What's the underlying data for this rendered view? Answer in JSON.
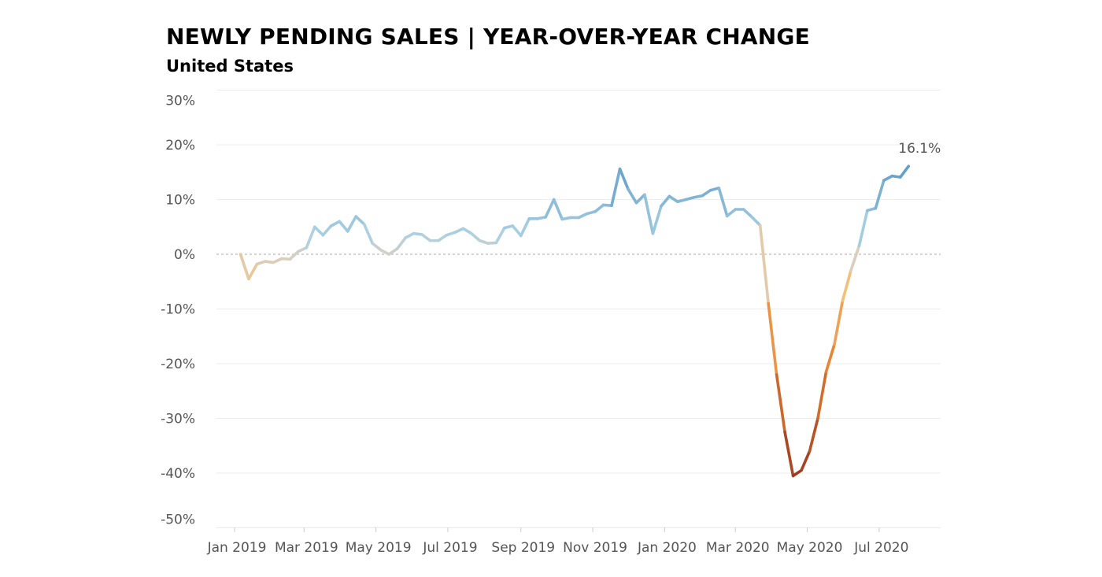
{
  "title": "NEWLY PENDING SALES | YEAR-OVER-YEAR CHANGE",
  "subtitle": "United States",
  "chart_data": {
    "type": "line",
    "title": "NEWLY PENDING SALES | YEAR-OVER-YEAR CHANGE",
    "subtitle": "United States",
    "xlabel": "",
    "ylabel": "",
    "ylim": [
      -50,
      30
    ],
    "y_ticks": [
      30,
      20,
      10,
      0,
      -10,
      -20,
      -30,
      -40,
      -50
    ],
    "y_tick_labels": [
      "30%",
      "20%",
      "10%",
      "0%",
      "-10%",
      "-20%",
      "-30%",
      "-40%",
      "-50%"
    ],
    "x_ticks": [
      "2019-01-01",
      "2019-03-01",
      "2019-05-01",
      "2019-07-01",
      "2019-09-01",
      "2019-11-01",
      "2020-01-01",
      "2020-03-01",
      "2020-05-01",
      "2020-07-01"
    ],
    "x_tick_labels": [
      "Jan 2019",
      "Mar 2019",
      "May 2019",
      "Jul 2019",
      "Sep 2019",
      "Nov 2019",
      "Jan 2020",
      "Mar 2020",
      "May 2020",
      "Jul 2020"
    ],
    "grid": true,
    "zero_line": "dashed",
    "colors": {
      "negative_light": "#f5c27a",
      "negative_mid": "#e8802f",
      "negative_dark": "#9e3b20",
      "neutral": "#d5d0c8",
      "positive_light": "#a8d0e3",
      "positive_dark": "#5f9cc8"
    },
    "annotation": "16.1%",
    "x": [
      "2019-01-06",
      "2019-01-13",
      "2019-01-20",
      "2019-01-27",
      "2019-02-03",
      "2019-02-10",
      "2019-02-17",
      "2019-02-24",
      "2019-03-03",
      "2019-03-10",
      "2019-03-17",
      "2019-03-24",
      "2019-03-31",
      "2019-04-07",
      "2019-04-14",
      "2019-04-21",
      "2019-04-28",
      "2019-05-05",
      "2019-05-12",
      "2019-05-19",
      "2019-05-26",
      "2019-06-02",
      "2019-06-09",
      "2019-06-16",
      "2019-06-23",
      "2019-06-30",
      "2019-07-07",
      "2019-07-14",
      "2019-07-21",
      "2019-07-28",
      "2019-08-04",
      "2019-08-11",
      "2019-08-18",
      "2019-08-25",
      "2019-09-01",
      "2019-09-08",
      "2019-09-15",
      "2019-09-22",
      "2019-09-29",
      "2019-10-06",
      "2019-10-13",
      "2019-10-20",
      "2019-10-27",
      "2019-11-03",
      "2019-11-10",
      "2019-11-17",
      "2019-11-24",
      "2019-12-01",
      "2019-12-08",
      "2019-12-15",
      "2019-12-22",
      "2019-12-29",
      "2020-01-05",
      "2020-01-12",
      "2020-01-19",
      "2020-01-26",
      "2020-02-02",
      "2020-02-09",
      "2020-02-16",
      "2020-02-23",
      "2020-03-01",
      "2020-03-08",
      "2020-03-15",
      "2020-03-22",
      "2020-03-29",
      "2020-04-05",
      "2020-04-12",
      "2020-04-19",
      "2020-04-26",
      "2020-05-03",
      "2020-05-10",
      "2020-05-17",
      "2020-05-24",
      "2020-05-31",
      "2020-06-07",
      "2020-06-14",
      "2020-06-21",
      "2020-06-28",
      "2020-07-05",
      "2020-07-12",
      "2020-07-19",
      "2020-07-26"
    ],
    "y": [
      0,
      -4.5,
      -1.8,
      -1.3,
      -1.5,
      -0.8,
      -0.9,
      0.5,
      1.2,
      5.0,
      3.5,
      5.2,
      6.0,
      4.2,
      6.9,
      5.5,
      2.0,
      0.8,
      0.0,
      1.0,
      3.0,
      3.8,
      3.6,
      2.5,
      2.5,
      3.5,
      4.0,
      4.7,
      3.8,
      2.5,
      2.0,
      2.1,
      4.8,
      5.2,
      3.4,
      6.5,
      6.5,
      6.8,
      10.0,
      6.4,
      6.7,
      6.7,
      7.4,
      7.8,
      9.0,
      8.9,
      15.6,
      11.9,
      9.4,
      10.9,
      3.8,
      8.8,
      10.6,
      9.6,
      10.0,
      10.4,
      10.7,
      11.7,
      12.1,
      7.0,
      8.2,
      8.2,
      6.8,
      5.3,
      -9.0,
      -22.0,
      -32.5,
      -40.5,
      -39.5,
      -36.0,
      -30.0,
      -21.5,
      -16.5,
      -8.5,
      -3.0,
      1.5,
      8.0,
      8.4,
      13.5,
      14.3,
      14.1,
      16.1
    ]
  }
}
